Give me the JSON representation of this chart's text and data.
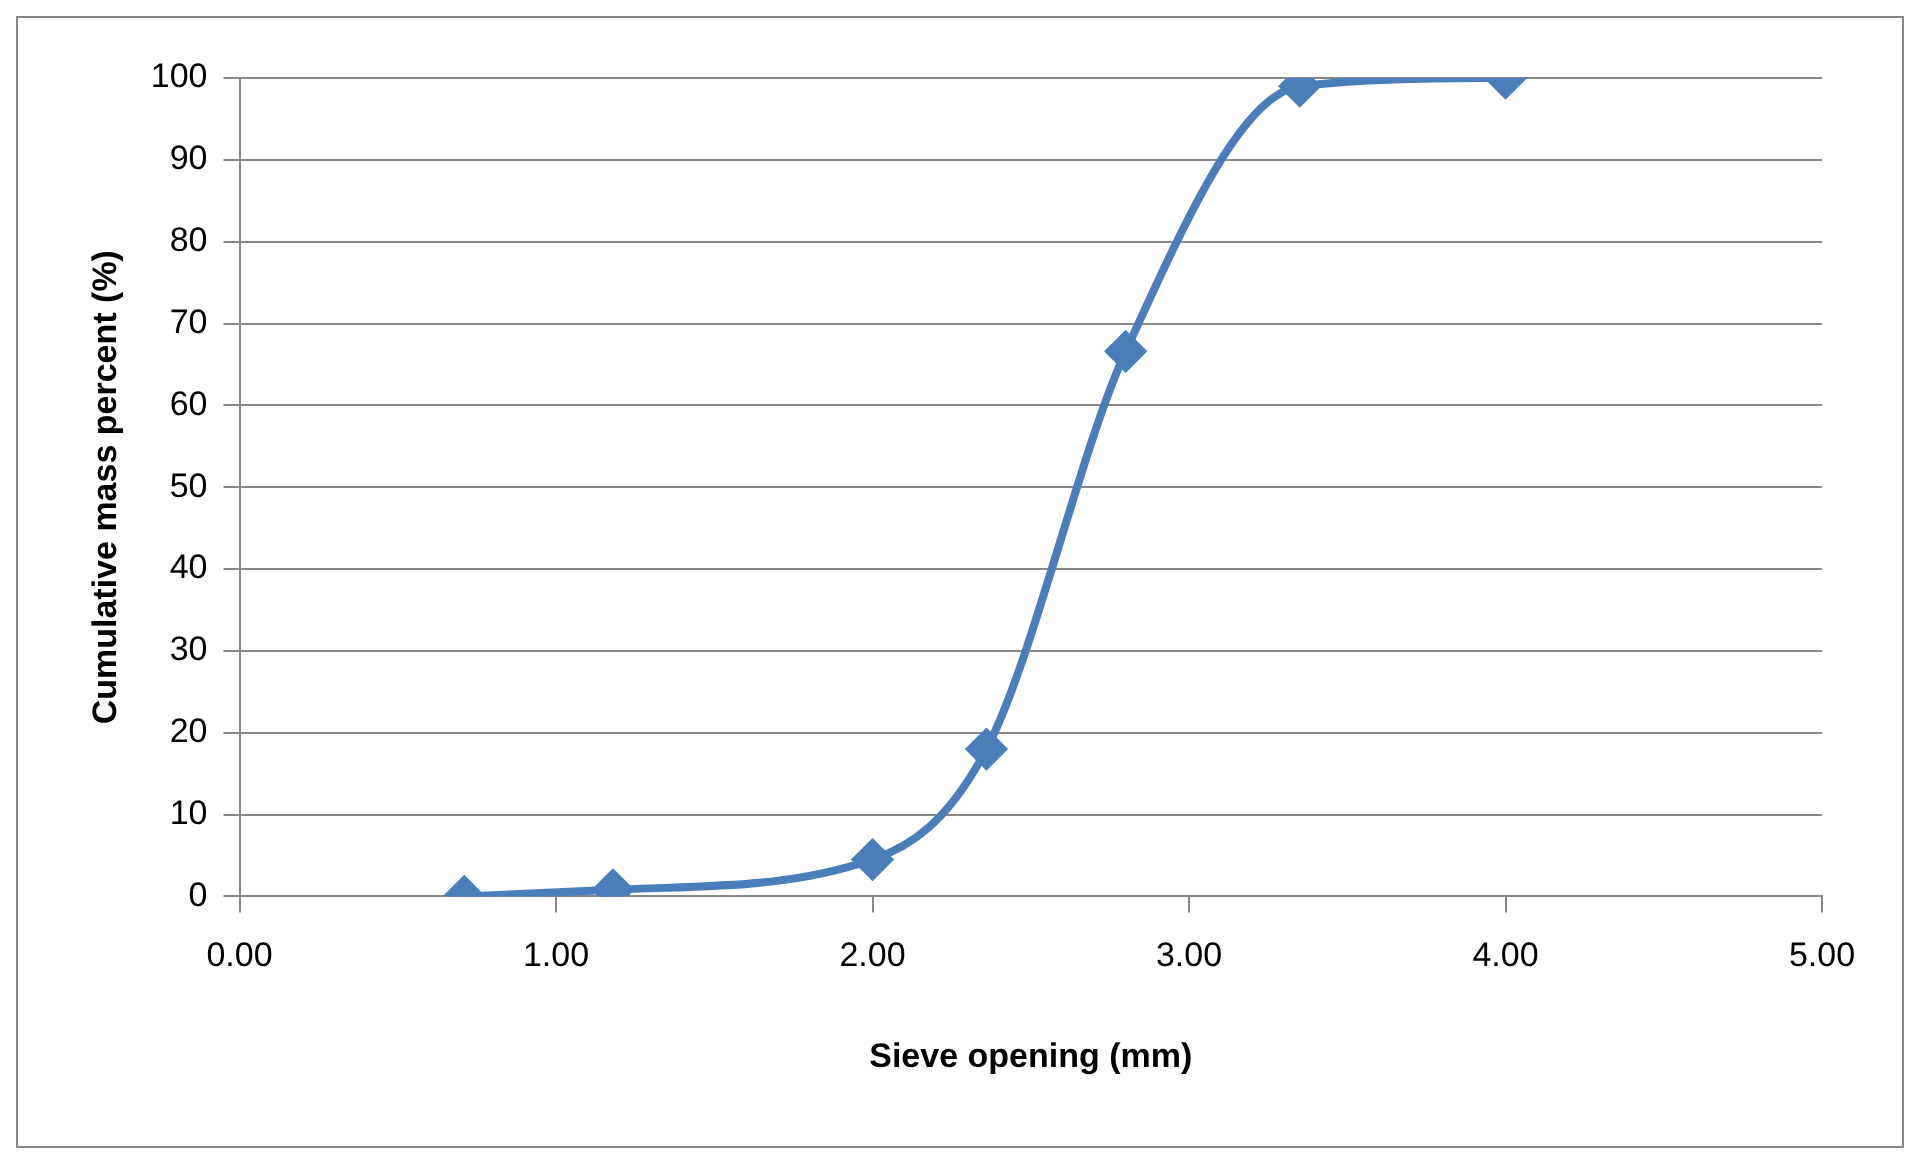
{
  "chart_data": {
    "type": "line",
    "xlabel": "Sieve opening (mm)",
    "ylabel": "Cumulative mass percent (%)",
    "series": [
      {
        "color": "#4a7ebb",
        "x": [
          0.71,
          1.18,
          2.0,
          2.36,
          2.8,
          3.35,
          4.0
        ],
        "values": [
          0,
          0.8,
          4.5,
          18,
          66.6,
          99,
          100
        ]
      }
    ],
    "xlim": [
      0,
      5
    ],
    "xticks": [
      {
        "value": 0,
        "label": "0.00"
      },
      {
        "value": 1,
        "label": "1.00"
      },
      {
        "value": 2,
        "label": "2.00"
      },
      {
        "value": 3,
        "label": "3.00"
      },
      {
        "value": 4,
        "label": "4.00"
      },
      {
        "value": 5,
        "label": "5.00"
      }
    ],
    "ylim": [
      0,
      100
    ],
    "yticks": [
      0,
      10,
      20,
      30,
      40,
      50,
      60,
      70,
      80,
      90,
      100
    ],
    "grid": "y",
    "legend": false,
    "marker": "diamond",
    "line_style": "solid"
  }
}
